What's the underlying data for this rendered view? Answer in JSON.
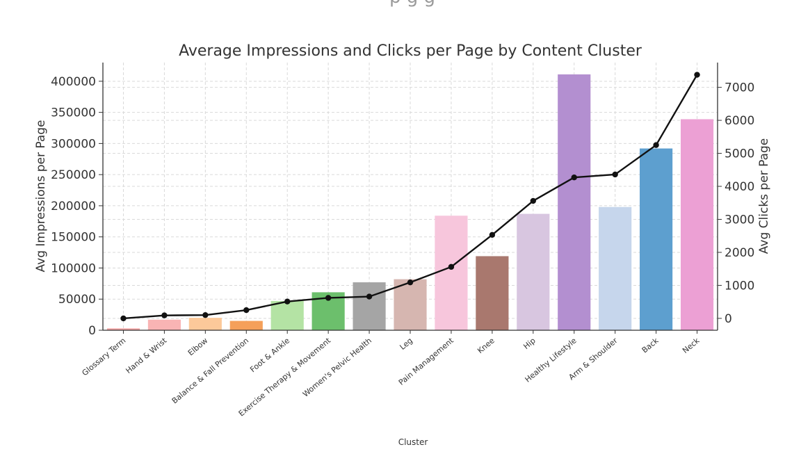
{
  "header_fragment": "p      g                           g",
  "chart_data": {
    "type": "bar",
    "title": "Average Impressions and Clicks per Page by Content Cluster",
    "xlabel": "Cluster",
    "ylabel": "Avg Impressions per Page",
    "y2label": "Avg Clicks per Page",
    "ylim": [
      0,
      430000
    ],
    "y2lim": [
      -360,
      7750
    ],
    "yticks": [
      0,
      50000,
      100000,
      150000,
      200000,
      250000,
      300000,
      350000,
      400000
    ],
    "y2ticks": [
      0,
      1000,
      2000,
      3000,
      4000,
      5000,
      6000,
      7000
    ],
    "grid": true,
    "categories": [
      "Glossary Term",
      "Hand & Wrist",
      "Elbow",
      "Balance & Fall Prevention",
      "Foot & Ankle",
      "Exercise Therapy & Movement",
      "Women's Pelvic Health",
      "Leg",
      "Pain Management",
      "Knee",
      "Hip",
      "Healthy Lifestyle",
      "Arm & Shoulder",
      "Back",
      "Neck"
    ],
    "series": [
      {
        "name": "Avg Impressions per Page",
        "type": "bar",
        "axis": "left",
        "values": [
          3000,
          17000,
          20000,
          15000,
          47000,
          61000,
          77000,
          82000,
          184000,
          119000,
          187000,
          411000,
          198000,
          292000,
          339000
        ],
        "colors": [
          "#f4a6a6",
          "#f9b4b4",
          "#fcc99a",
          "#f5a05a",
          "#b4e3a4",
          "#6cbf6c",
          "#a5a5a5",
          "#d6b6b0",
          "#f7c6dc",
          "#a9786e",
          "#d8c6e0",
          "#b38fd0",
          "#c6d6ec",
          "#5d9fcf",
          "#eca0d4"
        ]
      },
      {
        "name": "Avg Clicks per Page",
        "type": "line",
        "axis": "right",
        "color": "#111111",
        "values": [
          0,
          90,
          100,
          250,
          510,
          620,
          660,
          1090,
          1560,
          2530,
          3560,
          4270,
          4360,
          5250,
          7380
        ]
      }
    ]
  }
}
